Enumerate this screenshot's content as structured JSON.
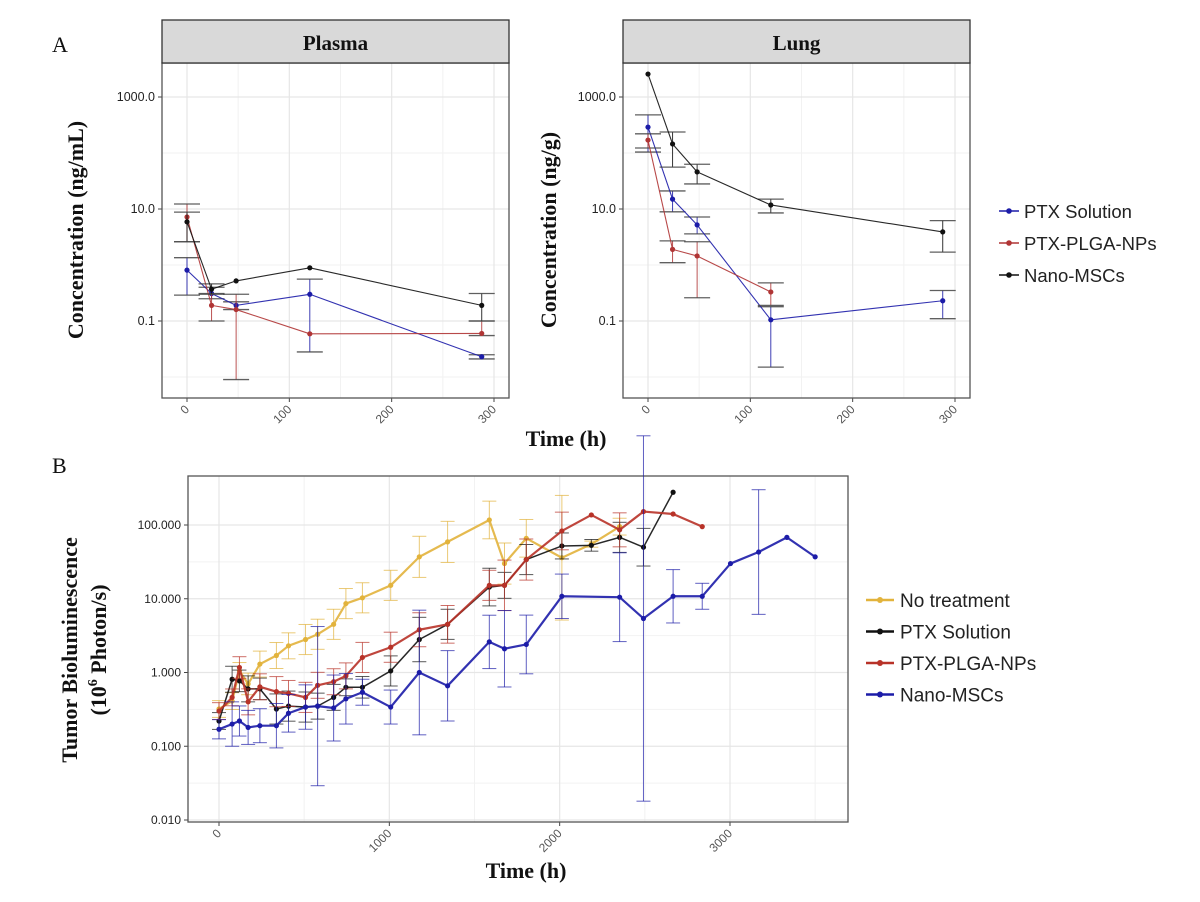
{
  "panel_labels": {
    "a": "A",
    "b": "B"
  },
  "top_xlabel": "Time (h)",
  "top_legend": [
    {
      "name": "PTX Solution",
      "color": "#1c1ca8"
    },
    {
      "name": "PTX-PLGA-NPs",
      "color": "#b03535"
    },
    {
      "name": "Nano-MSCs",
      "color": "#111111"
    }
  ],
  "chart_data": [
    {
      "type": "line",
      "title": "Plasma",
      "ylabel": "Concentration (ng/mL)",
      "yscale": "log10",
      "ylim": [
        0.004,
        4000
      ],
      "xlim": [
        -24,
        315
      ],
      "yticks": [
        1000,
        10,
        0.1
      ],
      "ytick_labels": [
        "1000.0",
        "10.0",
        "0.1"
      ],
      "xticks": [
        0,
        100,
        200,
        300
      ],
      "xtick_labels": [
        "0",
        "100",
        "200",
        "300"
      ],
      "grid": true,
      "series": [
        {
          "name": "PTX Solution",
          "color": "#1c1ca8",
          "x": [
            0,
            24,
            48,
            120,
            288
          ],
          "y": [
            0.81,
            0.31,
            0.19,
            0.3,
            0.023
          ],
          "err_lo": [
            0.29,
            0.25,
            0.16,
            0.028,
            0.021
          ],
          "err_hi": [
            1.35,
            0.4,
            0.22,
            0.56,
            0.025
          ]
        },
        {
          "name": "PTX-PLGA-NPs",
          "color": "#b03535",
          "x": [
            0,
            24,
            48,
            120,
            288
          ],
          "y": [
            7.2,
            0.19,
            0.16,
            0.059,
            0.06
          ],
          "err_lo": [
            2.6,
            0.1,
            0.009,
            0.059,
            0.055
          ],
          "err_hi": [
            12.3,
            0.31,
            0.3,
            0.059,
            0.1
          ]
        },
        {
          "name": "Nano-MSCs",
          "color": "#111111",
          "x": [
            0,
            24,
            48,
            120,
            288
          ],
          "y": [
            5.9,
            0.37,
            0.52,
            0.89,
            0.19
          ],
          "err_lo": [
            2.6,
            0.3,
            0.52,
            0.89,
            0.1
          ],
          "err_hi": [
            8.8,
            0.46,
            0.52,
            0.89,
            0.31
          ]
        }
      ]
    },
    {
      "type": "line",
      "title": "Lung",
      "ylabel": "Concentration (ng/g)",
      "yscale": "log10",
      "ylim": [
        0.004,
        4000
      ],
      "xlim": [
        -24,
        315
      ],
      "yticks": [
        1000,
        10,
        0.1
      ],
      "ytick_labels": [
        "1000.0",
        "10.0",
        "0.1"
      ],
      "xticks": [
        0,
        100,
        200,
        300
      ],
      "xtick_labels": [
        "0",
        "100",
        "200",
        "300"
      ],
      "grid": true,
      "series": [
        {
          "name": "PTX Solution",
          "color": "#1c1ca8",
          "x": [
            0,
            24,
            48,
            120,
            288
          ],
          "y": [
            290,
            15,
            5.2,
            0.105,
            0.23
          ],
          "err_lo": [
            104,
            8.9,
            3.6,
            0.015,
            0.11
          ],
          "err_hi": [
            480,
            21,
            7.2,
            0.18,
            0.35
          ]
        },
        {
          "name": "PTX-PLGA-NPs",
          "color": "#b03535",
          "x": [
            0,
            24,
            48,
            120
          ],
          "y": [
            170,
            1.9,
            1.45,
            0.33
          ],
          "err_lo": [
            123,
            1.1,
            0.26,
            0.19
          ],
          "err_hi": [
            220,
            2.7,
            2.6,
            0.48
          ]
        },
        {
          "name": "Nano-MSCs",
          "color": "#111111",
          "x": [
            0,
            24,
            48,
            120,
            288
          ],
          "y": [
            2570,
            145,
            46,
            11.8,
            3.9
          ],
          "err_lo": [
            2570,
            56,
            28,
            8.5,
            1.7
          ],
          "err_hi": [
            2570,
            237,
            63,
            15,
            6.2
          ]
        }
      ]
    },
    {
      "type": "line",
      "title": "",
      "xlabel": "Time (h)",
      "ylabel": [
        "Tumor Bioluminescence",
        "(10",
        "6",
        " Photon/s)"
      ],
      "yscale": "log10",
      "ylim": [
        0.0074,
        470
      ],
      "xlim": [
        -180,
        3690
      ],
      "yticks": [
        100,
        10,
        1,
        0.1,
        0.01
      ],
      "ytick_labels": [
        "100.000",
        "10.000",
        "1.000",
        "0.100",
        "0.010"
      ],
      "xticks": [
        0,
        1000,
        2000,
        3000
      ],
      "xtick_labels": [
        "0",
        "1000",
        "2000",
        "3000"
      ],
      "grid": true,
      "legend": [
        "No treatment",
        "PTX Solution",
        "PTX-PLGA-NPs",
        "Nano-MSCs"
      ],
      "series": [
        {
          "name": "No treatment",
          "color": "#e2b33c",
          "x": [
            0,
            77,
            120,
            171,
            240,
            337,
            408,
            508,
            579,
            673,
            745,
            842,
            1008,
            1176,
            1342,
            1587,
            1676,
            1804,
            2013,
            2186,
            2352
          ],
          "y": [
            0.32,
            0.41,
            1.05,
            0.7,
            1.3,
            1.7,
            2.3,
            2.8,
            3.3,
            4.5,
            8.6,
            10.3,
            15.2,
            37,
            59,
            117,
            30,
            66,
            36,
            55,
            95
          ],
          "err_factor": [
            1.3,
            1.3,
            1.3,
            1.4,
            1.5,
            1.5,
            1.5,
            1.6,
            1.6,
            1.6,
            1.6,
            1.6,
            1.6,
            1.9,
            1.9,
            1.8,
            1.9,
            1.8,
            7,
            1.1,
            1.3
          ]
        },
        {
          "name": "PTX Solution",
          "color": "#111111",
          "x": [
            0,
            77,
            120,
            171,
            240,
            337,
            408,
            508,
            579,
            673,
            745,
            842,
            1008,
            1176,
            1342,
            1587,
            1676,
            1804,
            2013,
            2186,
            2352,
            2492,
            2666
          ],
          "y": [
            0.22,
            0.81,
            0.77,
            0.6,
            0.6,
            0.32,
            0.35,
            0.34,
            0.35,
            0.46,
            0.63,
            0.63,
            1.05,
            2.8,
            4.5,
            14.4,
            15.2,
            34,
            52,
            53,
            68,
            50,
            278
          ],
          "err_factor": [
            1.3,
            1.5,
            1.4,
            1.5,
            1.4,
            1.6,
            1.6,
            1.6,
            1.5,
            1.5,
            1.3,
            1.4,
            1.6,
            2,
            1.6,
            1.8,
            1.5,
            1.6,
            1.5,
            1.2,
            1.6,
            1.8,
            1
          ]
        },
        {
          "name": "PTX-PLGA-NPs",
          "color": "#b83228",
          "x": [
            0,
            77,
            120,
            171,
            240,
            337,
            408,
            508,
            579,
            673,
            745,
            842,
            1008,
            1176,
            1342,
            1587,
            1676,
            1804,
            2013,
            2186,
            2352,
            2492,
            2666,
            2837
          ],
          "y": [
            0.3,
            0.46,
            1.17,
            0.4,
            0.64,
            0.55,
            0.52,
            0.46,
            0.67,
            0.75,
            0.9,
            1.6,
            2.2,
            3.8,
            4.5,
            15.2,
            15.2,
            34,
            83,
            137,
            86,
            152,
            141,
            95
          ],
          "err_factor": [
            1.3,
            1.3,
            1.4,
            1.5,
            1.5,
            1.6,
            1.5,
            1.6,
            1.5,
            1.5,
            1.5,
            1.6,
            1.6,
            1.7,
            1.8,
            1.6,
            2.2,
            1.9,
            1.8,
            1,
            1.7,
            1,
            1,
            1
          ]
        },
        {
          "name": "Nano-MSCs",
          "color": "#1c1ca8",
          "x": [
            0,
            77,
            120,
            171,
            240,
            337,
            408,
            508,
            579,
            673,
            745,
            842,
            1008,
            1176,
            1342,
            1587,
            1676,
            1804,
            2013,
            2352,
            2492,
            2666,
            2837,
            3003,
            3168,
            3334,
            3500
          ],
          "y": [
            0.17,
            0.2,
            0.22,
            0.18,
            0.19,
            0.19,
            0.28,
            0.34,
            0.35,
            0.33,
            0.44,
            0.54,
            0.34,
            1.0,
            0.66,
            2.6,
            2.1,
            2.4,
            10.8,
            10.5,
            5.4,
            10.8,
            10.8,
            30,
            43,
            68,
            37
          ],
          "err_factor": [
            1.35,
            2,
            1.6,
            1.7,
            1.7,
            2,
            1.8,
            2,
            12,
            2.8,
            2.2,
            1.5,
            1.7,
            7,
            3,
            2.3,
            3.3,
            2.5,
            2,
            4,
            300,
            2.3,
            1.5,
            1,
            7,
            1,
            1
          ]
        }
      ]
    }
  ]
}
